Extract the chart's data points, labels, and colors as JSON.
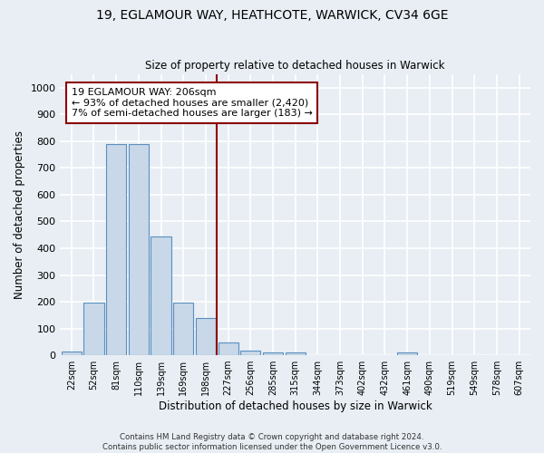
{
  "title1": "19, EGLAMOUR WAY, HEATHCOTE, WARWICK, CV34 6GE",
  "title2": "Size of property relative to detached houses in Warwick",
  "xlabel": "Distribution of detached houses by size in Warwick",
  "ylabel": "Number of detached properties",
  "categories": [
    "22sqm",
    "52sqm",
    "81sqm",
    "110sqm",
    "139sqm",
    "169sqm",
    "198sqm",
    "227sqm",
    "256sqm",
    "285sqm",
    "315sqm",
    "344sqm",
    "373sqm",
    "402sqm",
    "432sqm",
    "461sqm",
    "490sqm",
    "519sqm",
    "549sqm",
    "578sqm",
    "607sqm"
  ],
  "values": [
    15,
    197,
    790,
    790,
    445,
    197,
    140,
    47,
    18,
    9,
    9,
    0,
    0,
    0,
    0,
    9,
    0,
    0,
    0,
    0,
    0
  ],
  "bar_color": "#c8d8e8",
  "bar_edge_color": "#5a8fc0",
  "vline_x_index": 6.5,
  "vline_color": "#8b0000",
  "annotation_line1": "19 EGLAMOUR WAY: 206sqm",
  "annotation_line2": "← 93% of detached houses are smaller (2,420)",
  "annotation_line3": "7% of semi-detached houses are larger (183) →",
  "annotation_box_color": "#8b0000",
  "annotation_bg": "white",
  "ylim": [
    0,
    1050
  ],
  "yticks": [
    0,
    100,
    200,
    300,
    400,
    500,
    600,
    700,
    800,
    900,
    1000
  ],
  "footer1": "Contains HM Land Registry data © Crown copyright and database right 2024.",
  "footer2": "Contains public sector information licensed under the Open Government Licence v3.0.",
  "background_color": "#e8eef4",
  "grid_color": "white"
}
